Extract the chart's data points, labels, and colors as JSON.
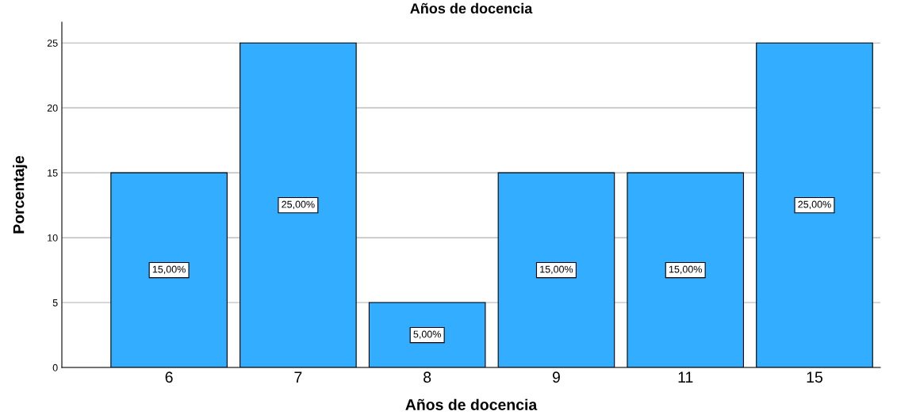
{
  "chart_data": {
    "type": "bar",
    "title": "Años de docencia",
    "xlabel": "Años de docencia",
    "ylabel": "Porcentaje",
    "categories": [
      "6",
      "7",
      "8",
      "9",
      "11",
      "15"
    ],
    "values": [
      15,
      25,
      5,
      15,
      15,
      25
    ],
    "value_labels": [
      "15,00%",
      "25,00%",
      "5,00%",
      "15,00%",
      "15,00%",
      "25,00%"
    ],
    "color": "#33adff",
    "ylim": [
      0,
      26.6
    ],
    "yticks": [
      0,
      5,
      10,
      15,
      20,
      25
    ],
    "grid": "y"
  }
}
